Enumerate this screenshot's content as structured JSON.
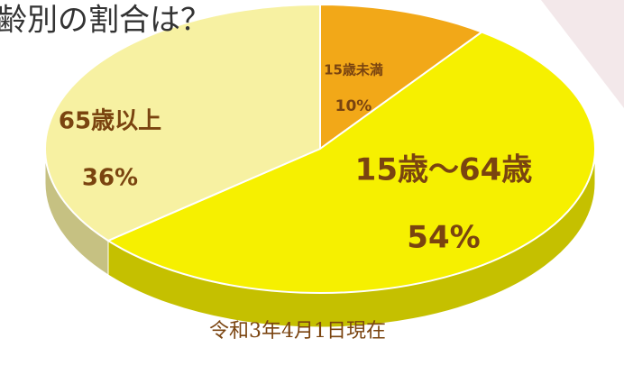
{
  "chart_data": {
    "type": "pie",
    "title": "齢別の割合は？",
    "categories": [
      "15歳未満",
      "15歳～64歳",
      "65歳以上"
    ],
    "values": [
      10,
      54,
      36
    ],
    "value_labels": [
      "10%",
      "54%",
      "36%"
    ],
    "colors": [
      "#f2a818",
      "#f6f000",
      "#f7f1a2"
    ],
    "annotation": "令和3年4月1日現在"
  }
}
